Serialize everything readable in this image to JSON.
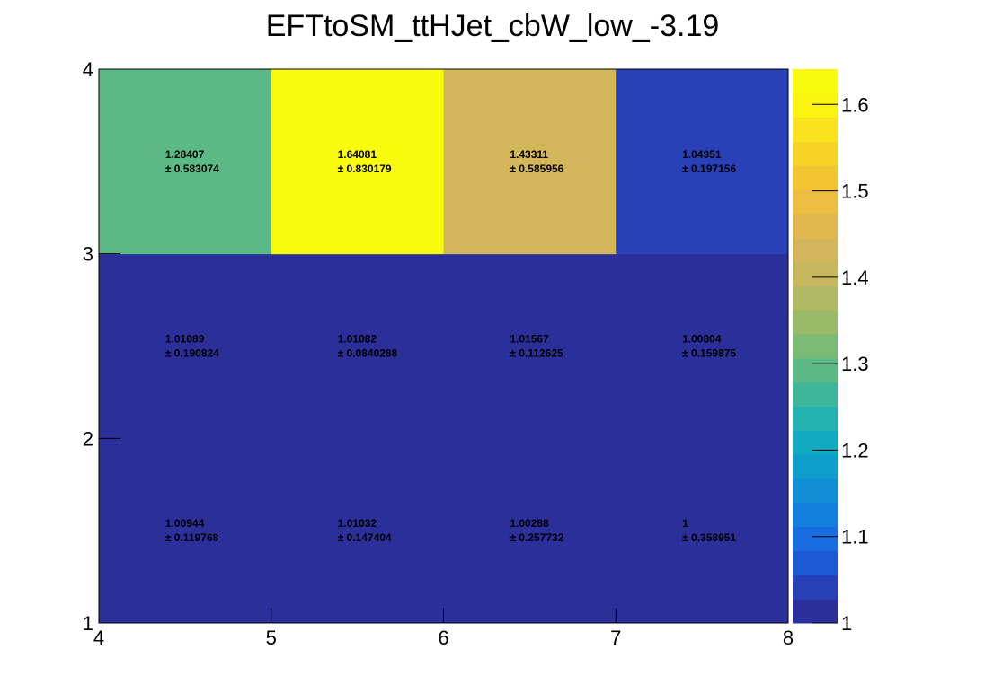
{
  "chart_data": {
    "type": "heatmap",
    "title": "EFTtoSM_ttHJet_cbW_low_-3.19",
    "xlabel": "",
    "ylabel": "",
    "x_edges": [
      4,
      5,
      6,
      7,
      8
    ],
    "y_edges": [
      1,
      2,
      3,
      4
    ],
    "xlim": [
      4,
      8
    ],
    "ylim": [
      1,
      4
    ],
    "x_ticks": [
      "4",
      "5",
      "6",
      "7",
      "8"
    ],
    "y_ticks": [
      "1",
      "2",
      "3",
      "4"
    ],
    "colorbar": {
      "range": [
        1.0,
        1.64081
      ],
      "ticks": [
        "1",
        "1.1",
        "1.2",
        "1.3",
        "1.4",
        "1.5",
        "1.6"
      ],
      "palette": [
        "#2b2f9a",
        "#2740b8",
        "#1c57d4",
        "#176ce0",
        "#137fdd",
        "#118fd6",
        "#0f9dcc",
        "#12aac0",
        "#24b2b0",
        "#3db69a",
        "#5bb985",
        "#7bba74",
        "#99ba68",
        "#b2b964",
        "#c5b85f",
        "#d4b65a",
        "#e1b84d",
        "#ecbd40",
        "#f4c533",
        "#f7d327",
        "#f8e31c",
        "#f9f30f",
        "#f9fb0e"
      ]
    },
    "cells": [
      {
        "x": 4.5,
        "y": 1.5,
        "value": "1.00944",
        "error": "± 0.119768"
      },
      {
        "x": 5.5,
        "y": 1.5,
        "value": "1.01032",
        "error": "± 0.147404"
      },
      {
        "x": 6.5,
        "y": 1.5,
        "value": "1.00288",
        "error": "± 0.257732"
      },
      {
        "x": 7.5,
        "y": 1.5,
        "value": "1",
        "error": "± 0.358951"
      },
      {
        "x": 4.5,
        "y": 2.5,
        "value": "1.01089",
        "error": "± 0.190824"
      },
      {
        "x": 5.5,
        "y": 2.5,
        "value": "1.01082",
        "error": "± 0.0840288"
      },
      {
        "x": 6.5,
        "y": 2.5,
        "value": "1.01567",
        "error": "± 0.112625"
      },
      {
        "x": 7.5,
        "y": 2.5,
        "value": "1.00804",
        "error": "± 0.159875"
      },
      {
        "x": 4.5,
        "y": 3.5,
        "value": "1.28407",
        "error": "± 0.583074"
      },
      {
        "x": 5.5,
        "y": 3.5,
        "value": "1.64081",
        "error": "± 0.830179"
      },
      {
        "x": 6.5,
        "y": 3.5,
        "value": "1.43311",
        "error": "± 0.585956"
      },
      {
        "x": 7.5,
        "y": 3.5,
        "value": "1.04951",
        "error": "± 0.197156"
      }
    ]
  }
}
